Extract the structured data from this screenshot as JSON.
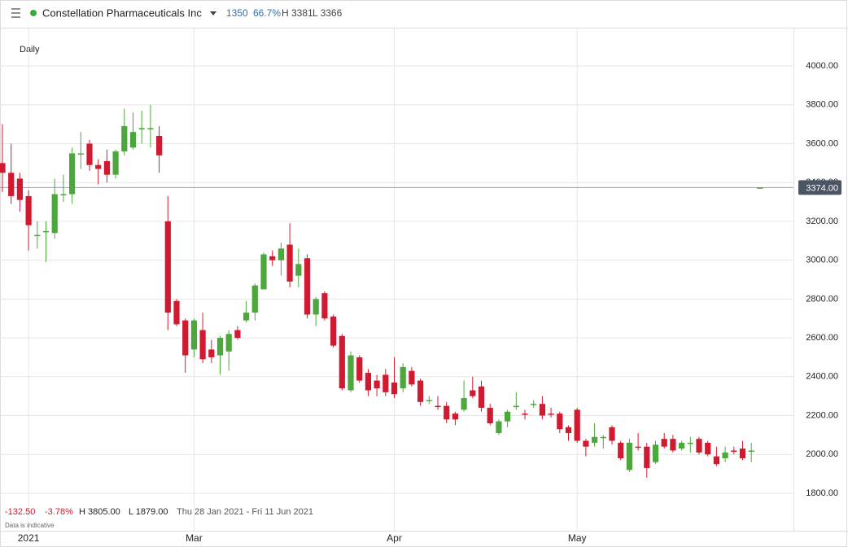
{
  "header": {
    "name": "Constellation Pharmaceuticals Inc",
    "change": "1350",
    "change_pct": "66.7%",
    "high": "H 3381",
    "low": "L 3366"
  },
  "footer": {
    "change": "-132.50",
    "change_pct": "-3.78%",
    "high": "H 3805.00",
    "low": "L 1879.00",
    "range": "Thu 28 Jan 2021 - Fri 11 Jun 2021",
    "note": "Data is indicative"
  },
  "chart_data": {
    "type": "candlestick",
    "interval": "Daily",
    "up_color": "#4ca83c",
    "down_color": "#d3192f",
    "grid": true,
    "categories": [
      null,
      null,
      null,
      "2021",
      null,
      null,
      null,
      null,
      null,
      null,
      null,
      null,
      null,
      null,
      null,
      null,
      null,
      null,
      null,
      null,
      null,
      null,
      "Mar",
      null,
      null,
      null,
      null,
      null,
      null,
      null,
      null,
      null,
      null,
      null,
      null,
      null,
      null,
      null,
      null,
      null,
      null,
      null,
      null,
      null,
      null,
      "Apr",
      null,
      null,
      null,
      null,
      null,
      null,
      null,
      null,
      null,
      null,
      null,
      null,
      null,
      null,
      null,
      null,
      null,
      null,
      null,
      null,
      "May",
      null,
      null,
      null,
      null,
      null,
      null,
      null,
      null,
      null,
      null,
      null,
      null,
      null,
      null,
      null,
      null,
      null,
      null,
      null,
      null,
      null
    ],
    "open": [
      3500,
      3450,
      3420,
      3330,
      3130,
      3150,
      3140,
      3340,
      3340,
      3550,
      3600,
      3490,
      3510,
      3440,
      3560,
      3580,
      3680,
      3680,
      3640,
      3200,
      2790,
      2690,
      2540,
      2640,
      2540,
      2510,
      2530,
      2640,
      2690,
      2730,
      2850,
      3020,
      3000,
      3080,
      2920,
      3010,
      2720,
      2830,
      2710,
      2610,
      2330,
      2500,
      2420,
      2380,
      2410,
      2370,
      2340,
      2430,
      2380,
      2280,
      2250,
      2250,
      2210,
      2230,
      2330,
      2350,
      2240,
      2110,
      2170,
      2250,
      2210,
      2260,
      2260,
      2210,
      2210,
      2140,
      2230,
      2070,
      2060,
      2090,
      2140,
      2060,
      1920,
      2040,
      2040,
      1960,
      2080,
      2080,
      2030,
      2060,
      2080,
      2060,
      1990,
      1980,
      2020,
      2030,
      2020,
      3374
    ],
    "high": [
      3700,
      3600,
      3450,
      3360,
      3200,
      3200,
      3420,
      3440,
      3580,
      3660,
      3620,
      3520,
      3570,
      3570,
      3780,
      3760,
      3770,
      3800,
      3690,
      3330,
      2800,
      2700,
      2700,
      2730,
      2590,
      2610,
      2640,
      2660,
      2790,
      2880,
      3040,
      3050,
      3090,
      3190,
      3060,
      3030,
      2810,
      2840,
      2720,
      2620,
      2530,
      2510,
      2440,
      2410,
      2440,
      2500,
      2470,
      2450,
      2390,
      2300,
      2300,
      2270,
      2220,
      2380,
      2400,
      2380,
      2260,
      2180,
      2230,
      2320,
      2230,
      2280,
      2300,
      2240,
      2220,
      2150,
      2240,
      2080,
      2160,
      2100,
      2150,
      2070,
      2080,
      2110,
      2060,
      2070,
      2110,
      2100,
      2070,
      2090,
      2090,
      2070,
      2040,
      2040,
      2040,
      2070,
      2060,
      3374
    ],
    "low": [
      3350,
      3290,
      3250,
      3050,
      3060,
      2990,
      3110,
      3300,
      3290,
      3470,
      3460,
      3390,
      3400,
      3420,
      3540,
      3570,
      3600,
      3580,
      3450,
      2640,
      2660,
      2420,
      2500,
      2470,
      2470,
      2410,
      2430,
      2590,
      2680,
      2690,
      2850,
      2970,
      2920,
      2860,
      2860,
      2700,
      2660,
      2690,
      2550,
      2330,
      2320,
      2370,
      2300,
      2300,
      2300,
      2290,
      2320,
      2350,
      2250,
      2260,
      2230,
      2160,
      2150,
      2220,
      2290,
      2220,
      2150,
      2100,
      2140,
      2230,
      2180,
      2240,
      2180,
      2190,
      2110,
      2070,
      2060,
      1990,
      2040,
      2030,
      2050,
      1970,
      1910,
      2020,
      1880,
      1950,
      2030,
      2010,
      2020,
      2010,
      2000,
      1990,
      1940,
      1960,
      2000,
      1970,
      1960,
      3374
    ],
    "close": [
      3450,
      3330,
      3310,
      3180,
      3130,
      3150,
      3340,
      3340,
      3550,
      3550,
      3490,
      3470,
      3440,
      3560,
      3690,
      3660,
      3680,
      3680,
      3540,
      2730,
      2670,
      2510,
      2690,
      2490,
      2500,
      2600,
      2620,
      2600,
      2730,
      2870,
      3030,
      3000,
      3060,
      2890,
      2980,
      2720,
      2800,
      2700,
      2560,
      2340,
      2510,
      2380,
      2330,
      2340,
      2320,
      2310,
      2450,
      2360,
      2270,
      2280,
      2245,
      2180,
      2180,
      2290,
      2300,
      2240,
      2160,
      2170,
      2220,
      2250,
      2205,
      2260,
      2200,
      2205,
      2130,
      2110,
      2070,
      2040,
      2090,
      2090,
      2070,
      1980,
      2060,
      2035,
      1930,
      2050,
      2040,
      2020,
      2060,
      2060,
      2010,
      2000,
      1950,
      2010,
      2015,
      1980,
      2020,
      3374
    ],
    "ylim": [
      1607,
      4193
    ],
    "yticks": [
      {
        "value": 1800,
        "label": "1800.00"
      },
      {
        "value": 2000,
        "label": "2000.00"
      },
      {
        "value": 2200,
        "label": "2200.00"
      },
      {
        "value": 2400,
        "label": "2400.00"
      },
      {
        "value": 2600,
        "label": "2600.00"
      },
      {
        "value": 2800,
        "label": "2800.00"
      },
      {
        "value": 3000,
        "label": "3000.00"
      },
      {
        "value": 3200,
        "label": "3200.00"
      },
      {
        "value": 3400,
        "label": "3400.00"
      },
      {
        "value": 3600,
        "label": "3600.00"
      },
      {
        "value": 3800,
        "label": "3800.00"
      },
      {
        "value": 4000,
        "label": "4000.00"
      }
    ],
    "price_line": {
      "value": 3374,
      "label": "3374.00"
    }
  }
}
